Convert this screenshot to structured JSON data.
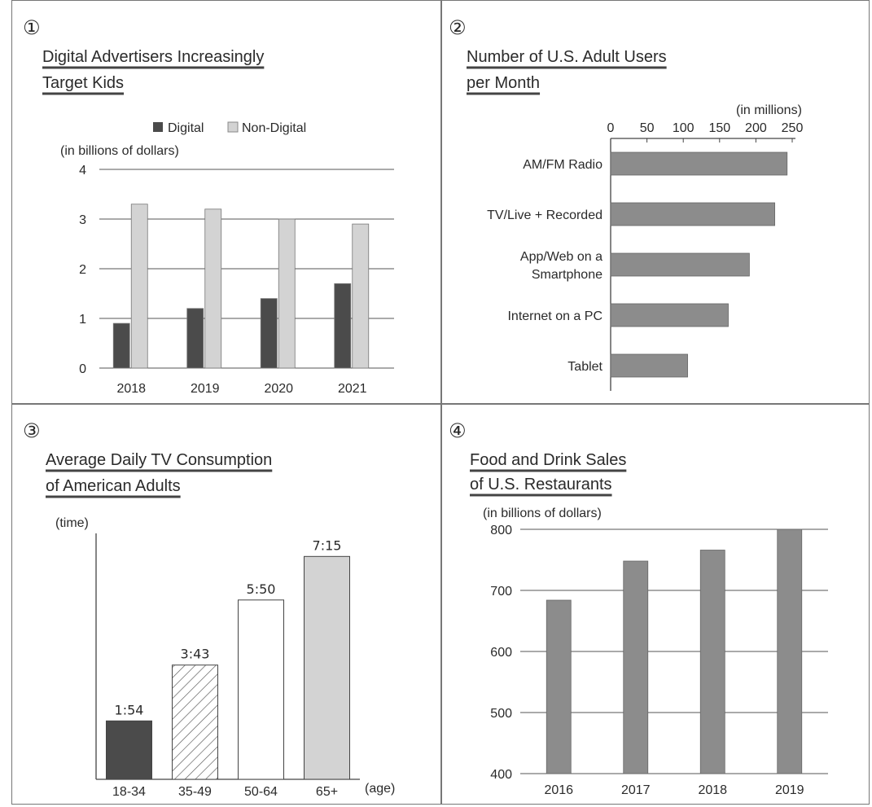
{
  "charts": [
    {
      "marker": "①",
      "title_lines": [
        "Digital Advertisers Increasingly",
        "Target Kids"
      ],
      "unit": "(in billions of dollars)",
      "legend": [
        "Digital",
        "Non-Digital"
      ],
      "colors": {
        "Digital": "#4b4b4b",
        "Non-Digital": "#d3d3d3"
      }
    },
    {
      "marker": "②",
      "title_lines": [
        "Number of U.S. Adult Users",
        "per Month"
      ],
      "unit": "(in millions)",
      "colors": {
        "bar": "#8c8c8c"
      }
    },
    {
      "marker": "③",
      "title_lines": [
        "Average Daily TV Consumption",
        "of American Adults"
      ],
      "y_unit": "(time)",
      "x_unit": "(age)",
      "value_labels": [
        "1:54",
        "3:43",
        "5:50",
        "7:15"
      ],
      "styles": [
        "dark",
        "hatched",
        "white",
        "light"
      ],
      "colors": {
        "dark": "#4b4b4b",
        "light": "#d3d3d3",
        "white": "#ffffff"
      }
    },
    {
      "marker": "④",
      "title_lines": [
        "Food and Drink Sales",
        "of U.S. Restaurants"
      ],
      "unit": "(in billions of dollars)",
      "colors": {
        "bar": "#8c8c8c"
      }
    }
  ],
  "chart_data": [
    {
      "type": "bar",
      "title": "Digital Advertisers Increasingly Target Kids",
      "ylabel": "(in billions of dollars)",
      "categories": [
        "2018",
        "2019",
        "2020",
        "2021"
      ],
      "series": [
        {
          "name": "Digital",
          "values": [
            0.9,
            1.2,
            1.4,
            1.7
          ]
        },
        {
          "name": "Non-Digital",
          "values": [
            3.3,
            3.2,
            3.0,
            2.9
          ]
        }
      ],
      "ylim": [
        0,
        4
      ],
      "yticks": [
        "0",
        "1",
        "2",
        "3",
        "4"
      ],
      "grid": true,
      "legend": "top"
    },
    {
      "type": "bar",
      "orientation": "horizontal",
      "title": "Number of U.S. Adult Users per Month",
      "xlabel": "(in millions)",
      "categories": [
        "AM/FM Radio",
        "TV/Live + Recorded",
        "App/Web on a Smartphone",
        "Internet on a PC",
        "Tablet"
      ],
      "values": [
        243,
        226,
        191,
        162,
        106
      ],
      "xlim": [
        0,
        250
      ],
      "xticks": [
        "0",
        "50",
        "100",
        "150",
        "200",
        "250"
      ]
    },
    {
      "type": "bar",
      "title": "Average Daily TV Consumption of American Adults",
      "ylabel": "(time)",
      "xlabel": "(age)",
      "categories": [
        "18-34",
        "35-49",
        "50-64",
        "65+"
      ],
      "values": [
        114,
        223,
        350,
        435
      ],
      "value_labels": [
        "1:54",
        "3:43",
        "5:50",
        "7:15"
      ],
      "ylim": [
        0,
        480
      ]
    },
    {
      "type": "bar",
      "title": "Food and Drink Sales of U.S. Restaurants",
      "ylabel": "(in billions of dollars)",
      "categories": [
        "2016",
        "2017",
        "2018",
        "2019"
      ],
      "values": [
        684,
        748,
        766,
        800
      ],
      "ylim": [
        400,
        800
      ],
      "yticks": [
        "400",
        "500",
        "600",
        "700",
        "800"
      ],
      "grid": true
    }
  ]
}
